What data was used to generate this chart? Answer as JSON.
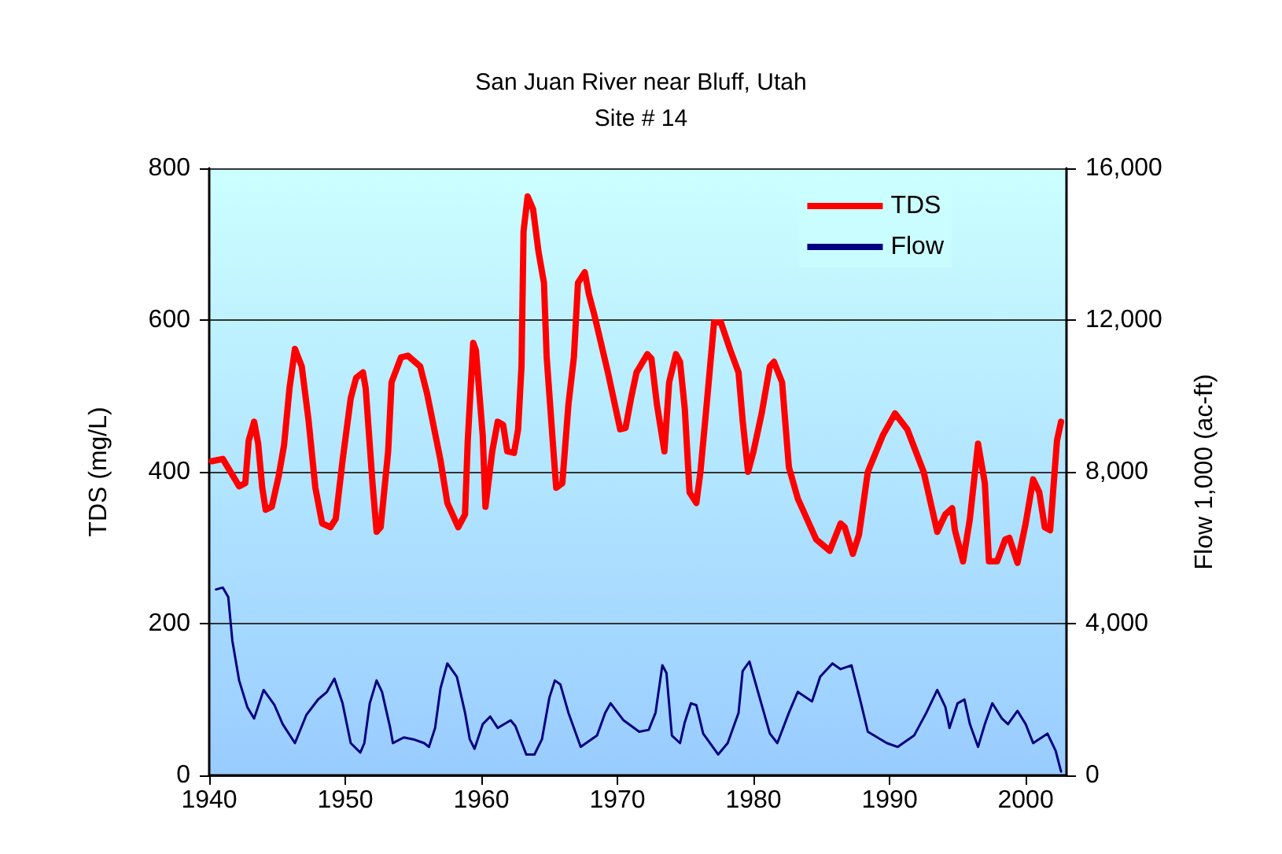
{
  "chart_data": {
    "type": "line",
    "title": "San Juan River near Bluff, Utah",
    "subtitle": "Site # 14",
    "ylabel": "TDS (mg/L)",
    "y2label": "Flow 1,000 (ac-ft)",
    "xlim": [
      1940,
      2003
    ],
    "xticks": [
      1940,
      1950,
      1960,
      1970,
      1980,
      1990,
      2000
    ],
    "ylim": [
      0,
      800
    ],
    "yticks": [
      0,
      200,
      400,
      600,
      800
    ],
    "y2lim": [
      0,
      16000
    ],
    "y2ticks": [
      0,
      {
        "value": 4000,
        "label": "4,000"
      },
      {
        "value": 8000,
        "label": "8,000"
      },
      {
        "value": 12000,
        "label": "12,000"
      },
      {
        "value": 16000,
        "label": "16,000"
      }
    ],
    "grid": "y",
    "legend": "top right",
    "marker": "none",
    "line_style": "solid",
    "series": [
      {
        "name": "TDS",
        "color": "#ff0000",
        "x": [
          1940.2,
          1941.0,
          1942.2,
          1942.65,
          1942.9,
          1943.3,
          1943.6,
          1943.9,
          1944.15,
          1944.6,
          1945.1,
          1945.5,
          1945.9,
          1946.3,
          1946.8,
          1947.3,
          1947.8,
          1948.3,
          1948.9,
          1949.3,
          1949.8,
          1950.4,
          1950.8,
          1951.3,
          1951.5,
          1952.0,
          1952.3,
          1952.6,
          1953.15,
          1953.4,
          1954.1,
          1954.6,
          1955.5,
          1956.0,
          1957.0,
          1957.5,
          1958.3,
          1958.8,
          1959.0,
          1959.4,
          1959.6,
          1960.1,
          1960.3,
          1960.8,
          1961.2,
          1961.6,
          1961.9,
          1962.4,
          1962.7,
          1962.95,
          1963.1,
          1963.4,
          1963.8,
          1964.2,
          1964.6,
          1964.8,
          1965.3,
          1965.5,
          1965.95,
          1966.4,
          1966.8,
          1967.1,
          1967.6,
          1967.9,
          1968.3,
          1969.3,
          1970.2,
          1970.6,
          1971.0,
          1971.4,
          1972.2,
          1972.5,
          1972.9,
          1973.45,
          1973.8,
          1974.3,
          1974.6,
          1974.95,
          1975.3,
          1975.8,
          1976.1,
          1976.6,
          1977.1,
          1977.6,
          1978.3,
          1978.9,
          1979.2,
          1979.6,
          1980.0,
          1980.6,
          1981.2,
          1981.5,
          1982.1,
          1982.6,
          1983.25,
          1984.6,
          1985.6,
          1986.4,
          1986.7,
          1987.3,
          1987.75,
          1988.4,
          1989.5,
          1990.4,
          1991.3,
          1992.5,
          1993.5,
          1994.1,
          1994.6,
          1994.8,
          1995.4,
          1995.9,
          1996.5,
          1997.0,
          1997.3,
          1997.9,
          1998.5,
          1998.8,
          1999.4,
          2000.0,
          2000.55,
          2001.0,
          2001.4,
          2001.8,
          2002.3,
          2002.6
        ],
        "values": [
          414,
          417,
          381,
          385,
          441,
          466,
          437,
          379,
          350,
          354,
          394,
          435,
          510,
          562,
          539,
          468,
          379,
          332,
          327,
          338,
          415,
          497,
          524,
          531,
          510,
          385,
          321,
          327,
          427,
          518,
          551,
          553,
          539,
          504,
          415,
          359,
          327,
          344,
          441,
          570,
          560,
          448,
          354,
          427,
          466,
          462,
          427,
          425,
          456,
          539,
          717,
          763,
          746,
          690,
          649,
          551,
          427,
          379,
          385,
          489,
          551,
          649,
          663,
          634,
          607,
          531,
          456,
          458,
          497,
          531,
          555,
          549,
          489,
          427,
          518,
          555,
          545,
          483,
          373,
          359,
          400,
          497,
          597,
          597,
          560,
          531,
          468,
          400,
          427,
          477,
          539,
          545,
          518,
          406,
          365,
          311,
          296,
          332,
          327,
          292,
          317,
          400,
          448,
          477,
          456,
          400,
          321,
          344,
          352,
          323,
          282,
          338,
          437,
          385,
          282,
          282,
          311,
          313,
          280,
          332,
          390,
          373,
          327,
          323,
          441,
          466
        ]
      },
      {
        "name": "Flow",
        "color": "#000080",
        "axis": "y2",
        "x": [
          1940.5,
          1941.0,
          1941.4,
          1941.7,
          1942.2,
          1942.8,
          1943.3,
          1944.0,
          1944.8,
          1945.4,
          1946.3,
          1947.15,
          1948.0,
          1948.65,
          1949.2,
          1949.8,
          1950.4,
          1951.1,
          1951.4,
          1951.8,
          1952.3,
          1952.7,
          1953.3,
          1953.5,
          1954.3,
          1955.0,
          1955.8,
          1956.15,
          1956.6,
          1957.0,
          1957.5,
          1958.2,
          1958.8,
          1959.15,
          1959.5,
          1960.1,
          1960.65,
          1961.2,
          1962.15,
          1962.5,
          1963.3,
          1963.9,
          1964.45,
          1965.0,
          1965.4,
          1965.8,
          1966.4,
          1967.3,
          1968.5,
          1969.1,
          1969.5,
          1970.45,
          1971.6,
          1972.3,
          1972.8,
          1973.3,
          1973.6,
          1974.0,
          1974.6,
          1974.95,
          1975.4,
          1975.8,
          1976.3,
          1977.4,
          1978.1,
          1978.9,
          1979.2,
          1979.7,
          1980.25,
          1981.2,
          1981.75,
          1982.6,
          1983.25,
          1984.3,
          1984.9,
          1985.8,
          1986.4,
          1987.2,
          1987.9,
          1988.4,
          1989.8,
          1990.6,
          1991.8,
          1992.7,
          1993.5,
          1994.1,
          1994.4,
          1995.0,
          1995.5,
          1995.9,
          1996.5,
          1997.0,
          1997.55,
          1998.25,
          1998.7,
          1999.4,
          2000.0,
          2000.55,
          2001.6,
          2002.2,
          2002.6
        ],
        "values": [
          4900,
          4950,
          4700,
          3550,
          2500,
          1800,
          1500,
          2250,
          1850,
          1350,
          850,
          1600,
          2000,
          2200,
          2550,
          1900,
          850,
          600,
          850,
          1900,
          2500,
          2200,
          1250,
          850,
          1000,
          950,
          850,
          750,
          1250,
          2300,
          2950,
          2600,
          1650,
          950,
          700,
          1350,
          1550,
          1250,
          1450,
          1300,
          550,
          550,
          950,
          2050,
          2500,
          2400,
          1650,
          750,
          1050,
          1650,
          1900,
          1450,
          1150,
          1200,
          1650,
          2900,
          2700,
          1050,
          850,
          1400,
          1900,
          1850,
          1100,
          550,
          850,
          1650,
          2750,
          3000,
          2300,
          1100,
          850,
          1650,
          2200,
          1950,
          2600,
          2950,
          2800,
          2900,
          1900,
          1150,
          850,
          750,
          1050,
          1650,
          2250,
          1800,
          1250,
          1900,
          2000,
          1350,
          750,
          1350,
          1900,
          1500,
          1350,
          1700,
          1350,
          850,
          1100,
          650,
          100
        ]
      }
    ]
  }
}
